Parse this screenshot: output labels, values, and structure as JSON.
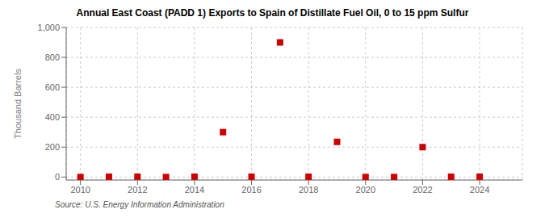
{
  "chart_data": {
    "type": "scatter",
    "title": "Annual East Coast (PADD 1) Exports to Spain of Distillate Fuel Oil, 0 to 15 ppm Sulfur",
    "ylabel": "Thousand Barrels",
    "source": "Source: U.S. Energy Information Administration",
    "x": [
      2010,
      2011,
      2012,
      2013,
      2014,
      2015,
      2016,
      2017,
      2018,
      2019,
      2020,
      2021,
      2022,
      2023,
      2024
    ],
    "values": [
      0,
      2,
      2,
      0,
      2,
      300,
      2,
      900,
      2,
      235,
      0,
      0,
      200,
      2,
      2
    ],
    "color": "#cc0000",
    "marker": "square",
    "xlim": [
      2009.5,
      2025.5
    ],
    "ylim": [
      -20,
      1000
    ],
    "xticks": [
      2010,
      2012,
      2014,
      2016,
      2018,
      2020,
      2022,
      2024
    ],
    "yticks": [
      0,
      200,
      400,
      600,
      800,
      {
        "value": 1000,
        "label": "1,000"
      }
    ],
    "grid": true
  }
}
